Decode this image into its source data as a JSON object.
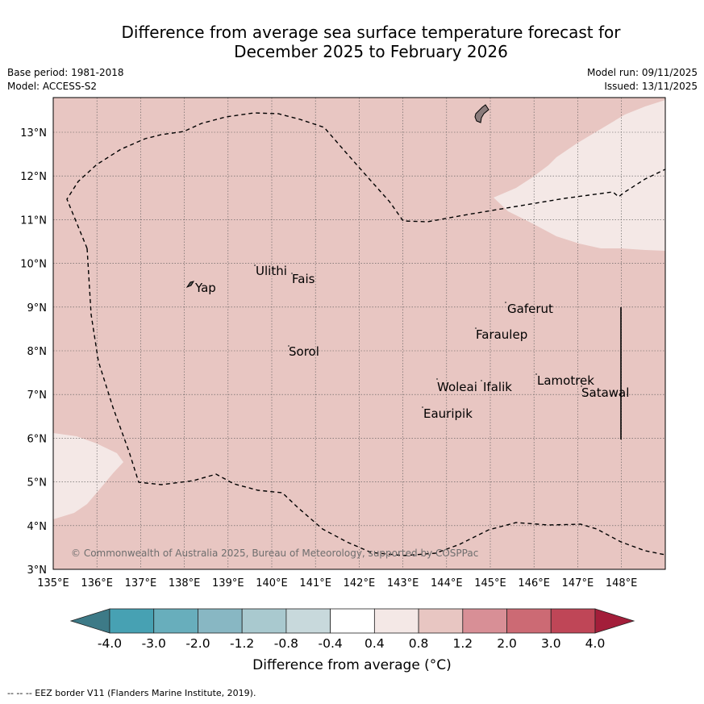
{
  "title_line1": "Difference from average sea surface temperature forecast for",
  "title_line2": "December 2025 to February 2026",
  "base_period": "Base period: 1981-2018",
  "model": "Model: ACCESS-S2",
  "model_run": "Model run: 09/11/2025",
  "issued": "Issued: 13/11/2025",
  "copyright": "© Commonwealth of Australia 2025, Bureau of Meteorology, supported by COSPPac",
  "footnote": "--  --  -- EEZ border V11 (Flanders Marine Institute, 2019).",
  "colorbar_label": "Difference from average (°C)",
  "axes": {
    "lon_labels": [
      "135°E",
      "136°E",
      "137°E",
      "138°E",
      "139°E",
      "140°E",
      "141°E",
      "142°E",
      "143°E",
      "144°E",
      "145°E",
      "146°E",
      "147°E",
      "148°E"
    ],
    "lat_labels": [
      "3°N",
      "4°N",
      "5°N",
      "6°N",
      "7°N",
      "8°N",
      "9°N",
      "10°N",
      "11°N",
      "12°N",
      "13°N"
    ]
  },
  "colorbar": {
    "ticks": [
      "-4.0",
      "-3.0",
      "-2.0",
      "-1.2",
      "-0.8",
      "-0.4",
      "0.4",
      "0.8",
      "1.2",
      "2.0",
      "3.0",
      "4.0"
    ],
    "colors": [
      "#3d7a87",
      "#47a1b3",
      "#68aebc",
      "#88b7c3",
      "#a9c9cf",
      "#c8d9dc",
      "#ffffff",
      "#f4e8e6",
      "#e8c6c2",
      "#d88f96",
      "#cc6a74",
      "#bf4657",
      "#a31e3a"
    ]
  },
  "places": [
    {
      "name": "Yap"
    },
    {
      "name": "Ulithi"
    },
    {
      "name": "Fais"
    },
    {
      "name": "Sorol"
    },
    {
      "name": "Gaferut"
    },
    {
      "name": "Faraulep"
    },
    {
      "name": "Woleai"
    },
    {
      "name": "Ifalik"
    },
    {
      "name": "Lamotrek"
    },
    {
      "name": "Satawal"
    },
    {
      "name": "Eauripik"
    }
  ],
  "fields": {
    "main_anomaly_color": "#e8c6c2",
    "light_anomaly_color": "#f4e8e6"
  }
}
